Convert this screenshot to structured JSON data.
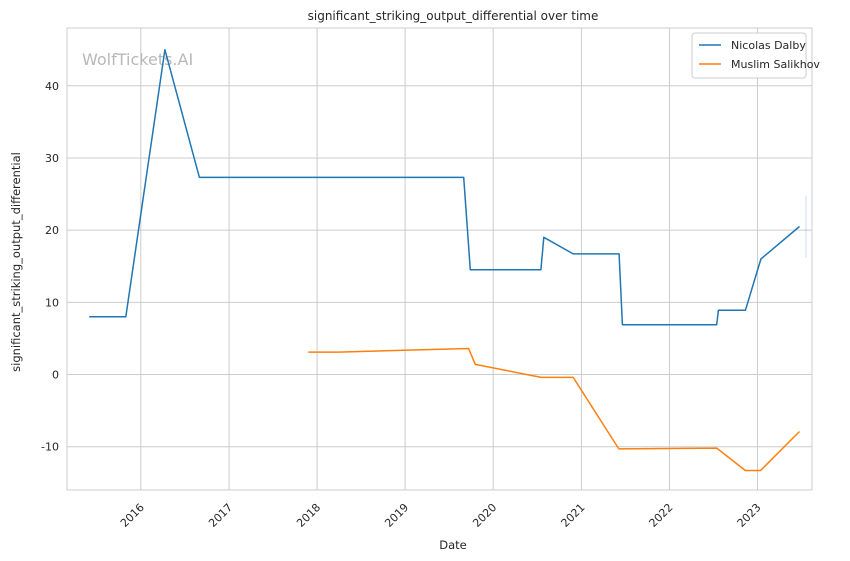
{
  "chart_data": {
    "type": "line",
    "title": "significant_striking_output_differential over time",
    "xlabel": "Date",
    "ylabel": "significant_striking_output_differential",
    "watermark": "WolfTickets.AI",
    "x_ticks": [
      "2016",
      "2017",
      "2018",
      "2019",
      "2020",
      "2021",
      "2022",
      "2023"
    ],
    "y_ticks": [
      -10,
      0,
      10,
      20,
      30,
      40
    ],
    "xlim": [
      "2015-03-01",
      "2023-08-15"
    ],
    "ylim": [
      -16.0,
      48.0
    ],
    "grid": true,
    "legend_position": "top-right",
    "series": [
      {
        "name": "Nicolas Dalby",
        "color": "#1f77b4",
        "points": [
          {
            "x": "2015-06-01",
            "y": 8.0
          },
          {
            "x": "2015-10-31",
            "y": 8.0
          },
          {
            "x": "2016-04-10",
            "y": 45.0
          },
          {
            "x": "2016-08-31",
            "y": 27.3
          },
          {
            "x": "2019-09-01",
            "y": 27.3
          },
          {
            "x": "2019-09-28",
            "y": 14.5
          },
          {
            "x": "2020-07-17",
            "y": 14.5
          },
          {
            "x": "2020-07-29",
            "y": 19.0
          },
          {
            "x": "2020-11-28",
            "y": 16.7
          },
          {
            "x": "2021-06-06",
            "y": 16.7
          },
          {
            "x": "2021-06-20",
            "y": 6.9
          },
          {
            "x": "2022-07-16",
            "y": 6.9
          },
          {
            "x": "2022-07-23",
            "y": 8.9
          },
          {
            "x": "2022-11-12",
            "y": 8.9
          },
          {
            "x": "2023-01-15",
            "y": 16.0
          },
          {
            "x": "2023-06-24",
            "y": 20.5
          }
        ]
      },
      {
        "name": "Muslim Salikhov",
        "color": "#ff7f0e",
        "points": [
          {
            "x": "2017-11-25",
            "y": 3.1
          },
          {
            "x": "2018-03-31",
            "y": 3.1
          },
          {
            "x": "2019-09-21",
            "y": 3.6
          },
          {
            "x": "2019-10-19",
            "y": 1.4
          },
          {
            "x": "2020-07-18",
            "y": -0.4
          },
          {
            "x": "2020-11-28",
            "y": -0.4
          },
          {
            "x": "2021-06-05",
            "y": -10.3
          },
          {
            "x": "2022-07-16",
            "y": -10.2
          },
          {
            "x": "2022-11-12",
            "y": -13.3
          },
          {
            "x": "2023-01-14",
            "y": -13.3
          },
          {
            "x": "2023-06-24",
            "y": -7.9
          }
        ]
      }
    ]
  }
}
